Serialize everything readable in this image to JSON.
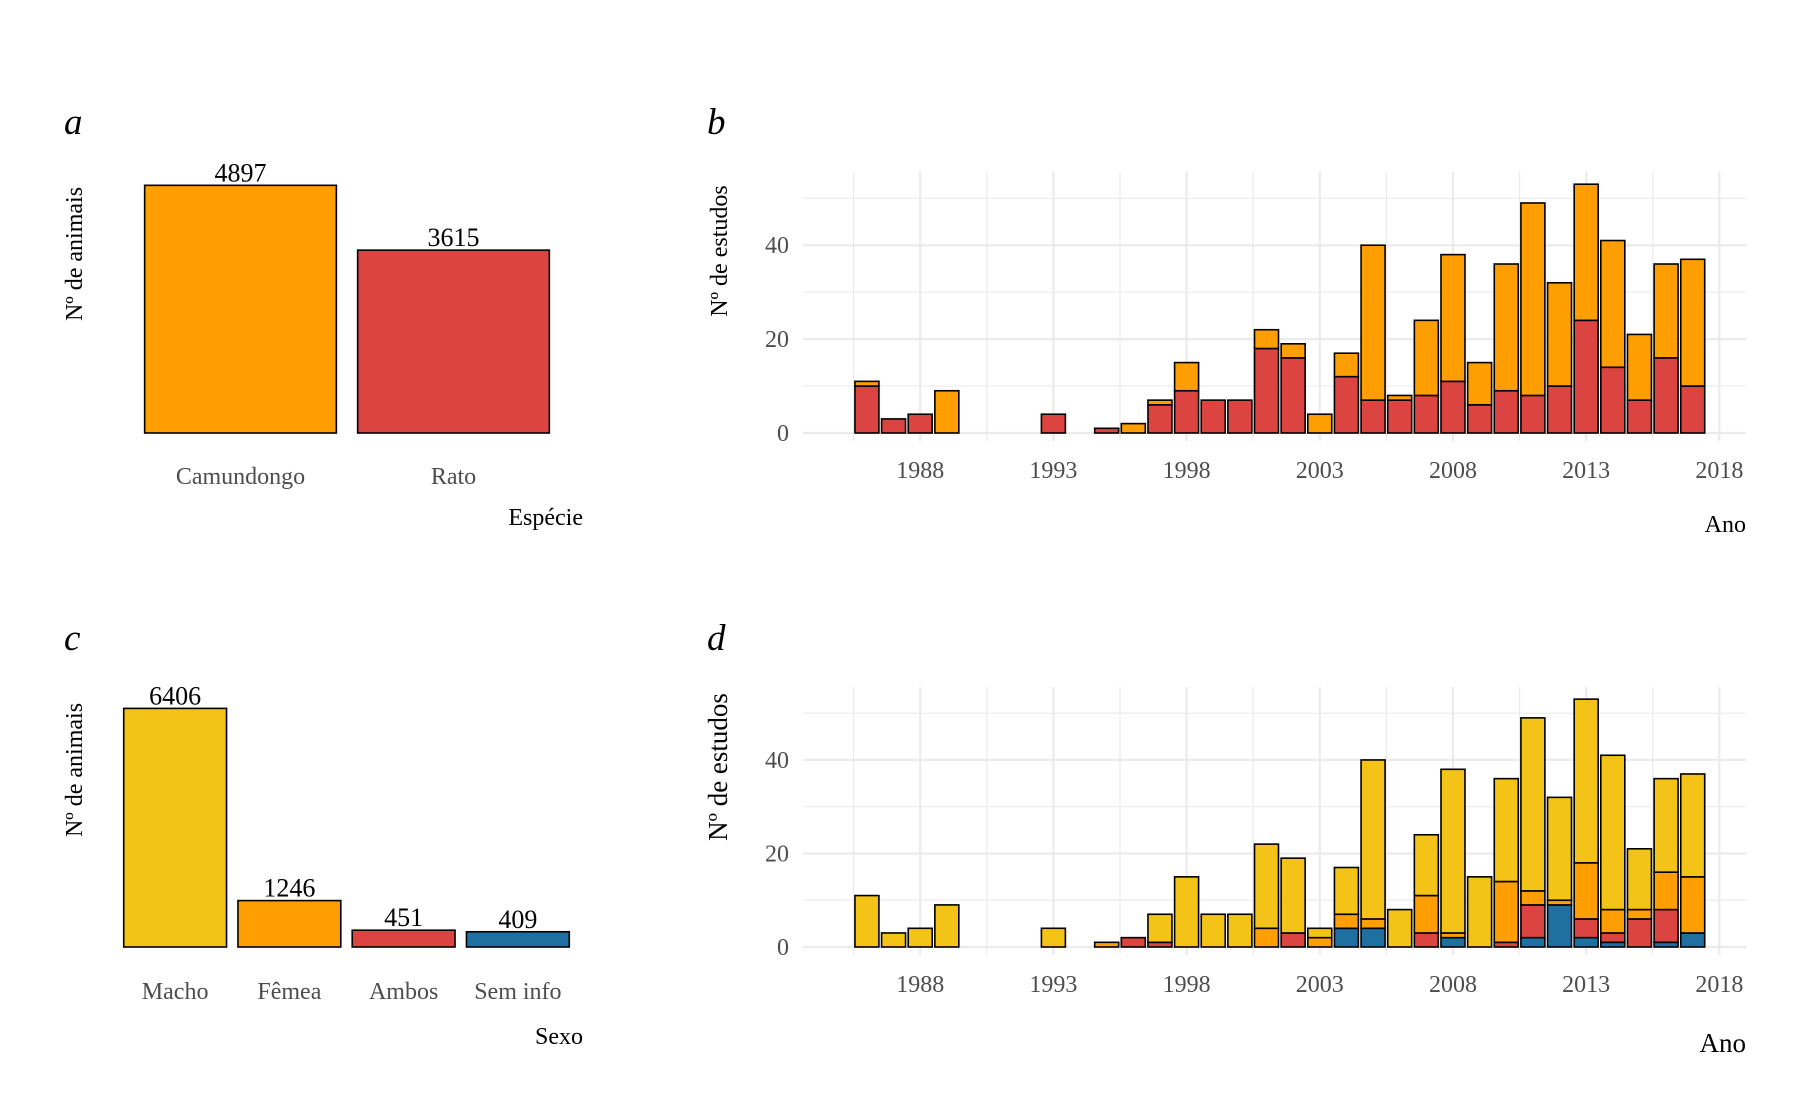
{
  "colors": {
    "camundongo": "#FF9E00",
    "rato": "#DB4440",
    "macho": "#F3C417",
    "femea": "#FF9E00",
    "ambos": "#DB4440",
    "sem_info": "#1F6FA0",
    "grid": "#EBEBEB"
  },
  "chart_data": [
    {
      "panel": "a",
      "type": "bar",
      "categories": [
        "Camundongo",
        "Rato"
      ],
      "values": [
        4897,
        3615
      ],
      "value_labels": [
        "4897",
        "3615"
      ],
      "colors": [
        "#FF9E00",
        "#DB4440"
      ],
      "xlabel": "Espécie",
      "ylabel": "Nº de animais",
      "ylim": [
        0,
        5200
      ],
      "grid": false
    },
    {
      "panel": "b",
      "type": "bar",
      "stacked": true,
      "x": [
        1986,
        1987,
        1988,
        1989,
        1993,
        1995,
        1996,
        1997,
        1998,
        1999,
        2000,
        2001,
        2002,
        2003,
        2004,
        2005,
        2006,
        2007,
        2008,
        2009,
        2010,
        2011,
        2012,
        2013,
        2014,
        2015,
        2016,
        2017
      ],
      "series": [
        {
          "key": "rato",
          "color": "#DB4440",
          "values": [
            10,
            3,
            4,
            0,
            4,
            1,
            0,
            6,
            9,
            7,
            7,
            18,
            16,
            0,
            12,
            7,
            7,
            8,
            11,
            6,
            9,
            8,
            10,
            24,
            14,
            7,
            16,
            10
          ]
        },
        {
          "key": "camundongo",
          "color": "#FF9E00",
          "values": [
            1,
            0,
            0,
            9,
            0,
            0,
            2,
            1,
            6,
            0,
            0,
            4,
            3,
            4,
            5,
            33,
            1,
            16,
            27,
            9,
            27,
            41,
            22,
            29,
            27,
            14,
            20,
            27
          ]
        }
      ],
      "xlabel": "Ano",
      "ylabel": "Nº de estudos",
      "xticks": [
        1988,
        1993,
        1998,
        2003,
        2008,
        2013,
        2018
      ],
      "yticks": [
        0,
        20,
        40
      ],
      "xlim": [
        1983.6,
        2019.0
      ],
      "ylim": [
        0,
        55.6
      ],
      "grid": true
    },
    {
      "panel": "c",
      "type": "bar",
      "categories": [
        "Macho",
        "Fêmea",
        "Ambos",
        "Sem info"
      ],
      "values": [
        6406,
        1246,
        451,
        409
      ],
      "value_labels": [
        "6406",
        "1246",
        "451",
        "409"
      ],
      "colors": [
        "#F3C417",
        "#FF9E00",
        "#DB4440",
        "#1F6FA0"
      ],
      "xlabel": "Sexo",
      "ylabel": "Nº de animais",
      "ylim": [
        0,
        6900
      ],
      "grid": false
    },
    {
      "panel": "d",
      "type": "bar",
      "stacked": true,
      "x": [
        1986,
        1987,
        1988,
        1989,
        1993,
        1995,
        1996,
        1997,
        1998,
        1999,
        2000,
        2001,
        2002,
        2003,
        2004,
        2005,
        2006,
        2007,
        2008,
        2009,
        2010,
        2011,
        2012,
        2013,
        2014,
        2015,
        2016,
        2017
      ],
      "series": [
        {
          "key": "sem_info",
          "color": "#1F6FA0",
          "values": [
            0,
            0,
            0,
            0,
            0,
            0,
            0,
            0,
            0,
            0,
            0,
            0,
            0,
            0,
            4,
            4,
            0,
            0,
            2,
            0,
            0,
            2,
            9,
            2,
            1,
            0,
            1,
            3
          ]
        },
        {
          "key": "ambos",
          "color": "#DB4440",
          "values": [
            0,
            0,
            0,
            0,
            0,
            0,
            2,
            1,
            0,
            0,
            0,
            0,
            3,
            0,
            0,
            0,
            0,
            3,
            0,
            0,
            1,
            7,
            0,
            4,
            2,
            6,
            7,
            0
          ]
        },
        {
          "key": "femea",
          "color": "#FF9E00",
          "values": [
            0,
            0,
            0,
            0,
            0,
            1,
            0,
            0,
            0,
            0,
            0,
            4,
            0,
            2,
            3,
            2,
            0,
            8,
            1,
            0,
            13,
            3,
            1,
            12,
            5,
            2,
            8,
            12
          ]
        },
        {
          "key": "macho",
          "color": "#F3C417",
          "values": [
            11,
            3,
            4,
            9,
            4,
            0,
            0,
            6,
            15,
            7,
            7,
            18,
            16,
            2,
            10,
            34,
            8,
            13,
            35,
            15,
            22,
            37,
            22,
            35,
            33,
            13,
            20,
            22
          ]
        }
      ],
      "xlabel": "Ano",
      "ylabel": "Nº de estudos",
      "xticks": [
        1988,
        1993,
        1998,
        2003,
        2008,
        2013,
        2018
      ],
      "yticks": [
        0,
        20,
        40
      ],
      "xlim": [
        1983.6,
        2019.0
      ],
      "ylim": [
        0,
        55.6
      ],
      "grid": true
    }
  ],
  "panels": {
    "a": {
      "tag": "a"
    },
    "b": {
      "tag": "b"
    },
    "c": {
      "tag": "c"
    },
    "d": {
      "tag": "d"
    }
  }
}
